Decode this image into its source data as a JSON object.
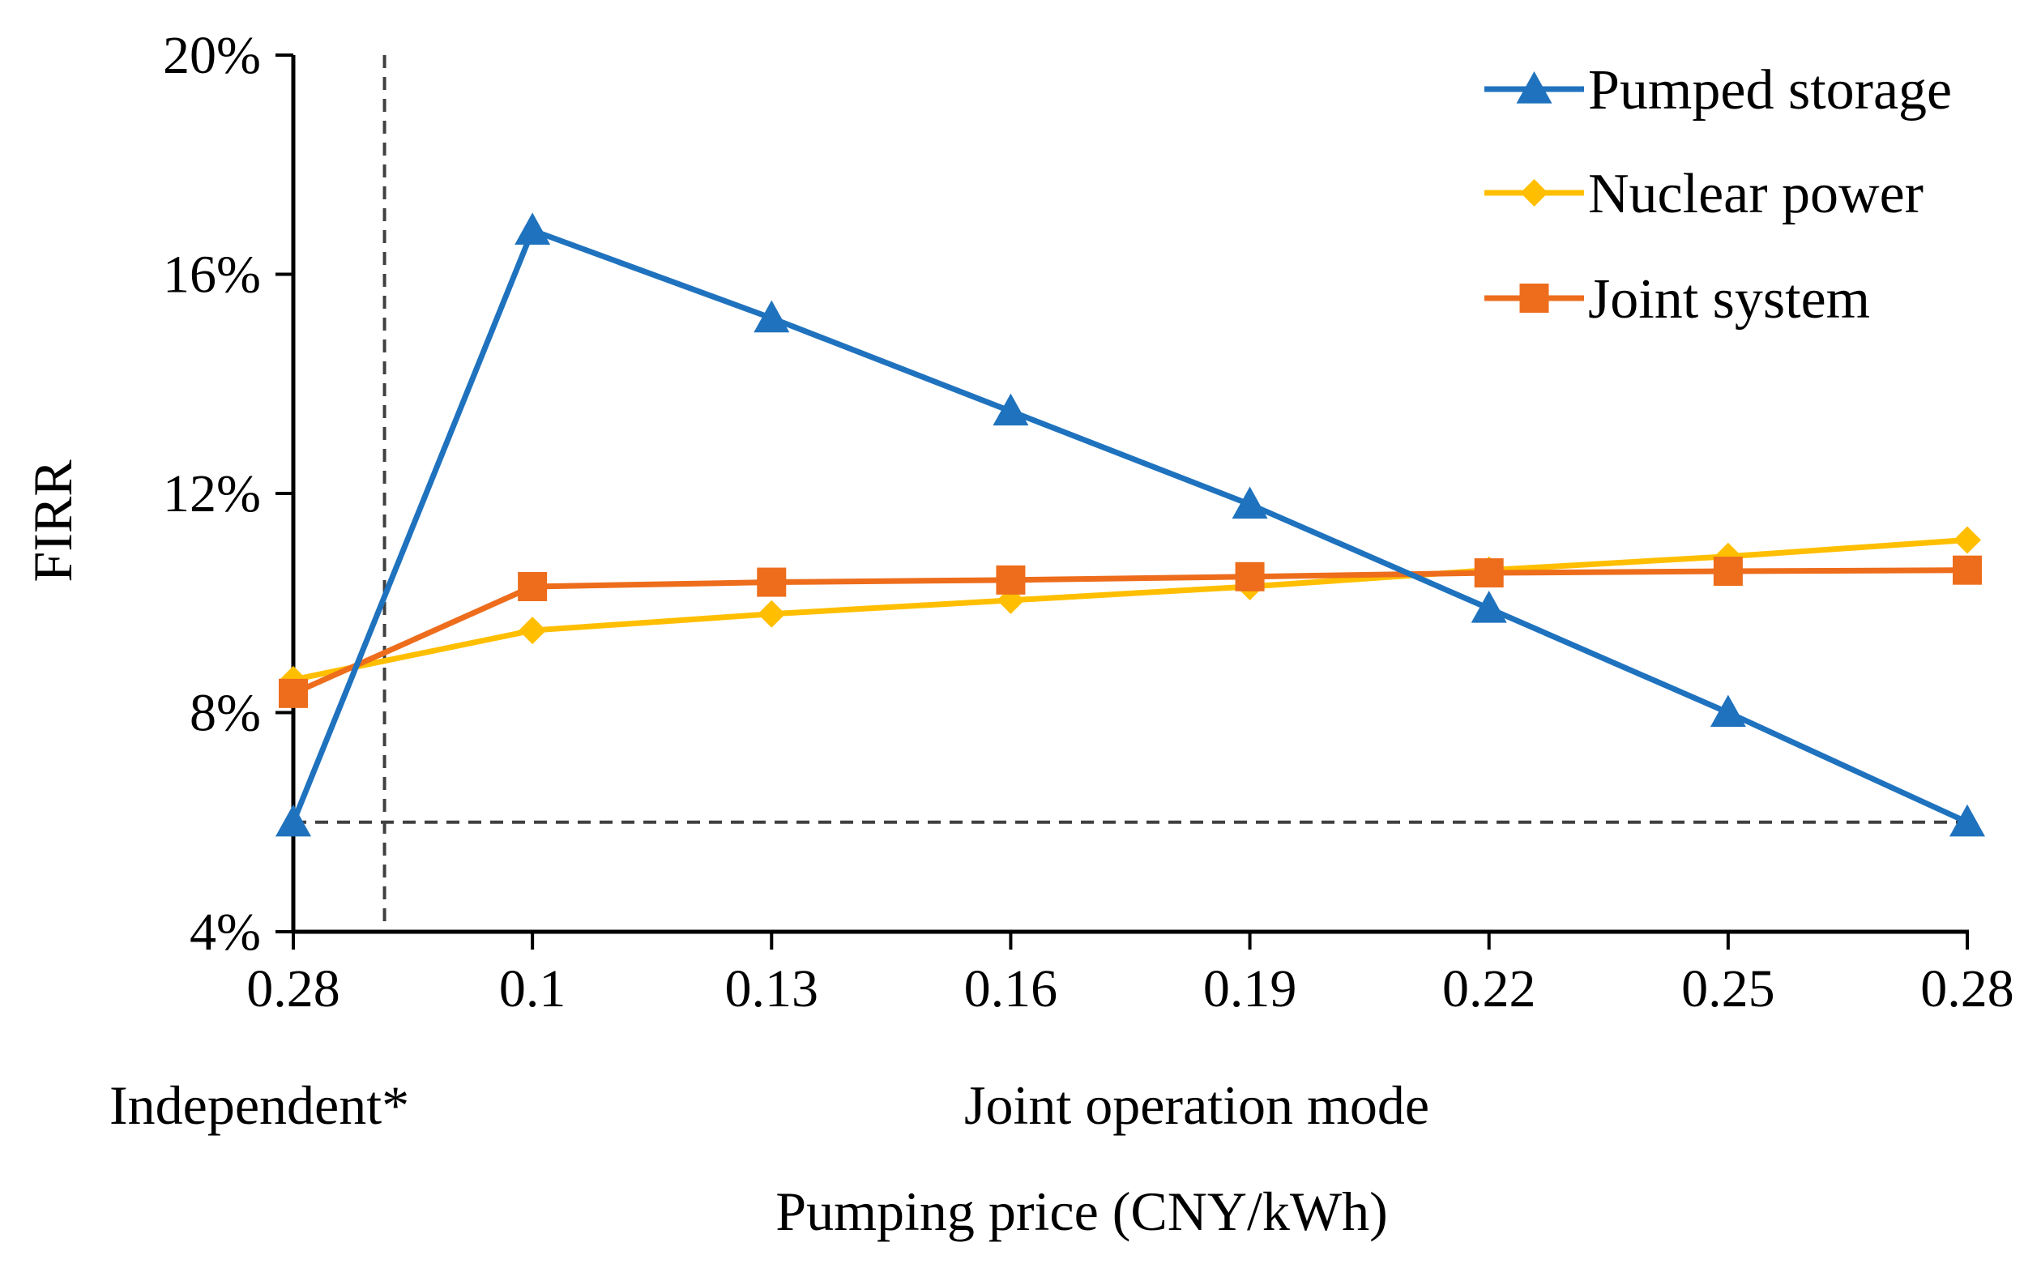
{
  "chart_data": {
    "type": "line",
    "xlabel": "Pumping price (CNY/kWh)",
    "ylabel": "FIRR",
    "categories": [
      "0.28",
      "0.1",
      "0.13",
      "0.16",
      "0.19",
      "0.22",
      "0.25",
      "0.28"
    ],
    "group_labels": {
      "independent": "Independent*",
      "joint": "Joint operation mode"
    },
    "ylim": [
      4,
      20
    ],
    "yticks": [
      4,
      8,
      12,
      16,
      20
    ],
    "ytick_labels": [
      "4%",
      "8%",
      "12%",
      "16%",
      "20%"
    ],
    "y_unit": "%",
    "reference_line_y": 6,
    "separator_between_categories": [
      0,
      1
    ],
    "legend_position": "top-right",
    "grid": false,
    "series": [
      {
        "name": "Pumped storage",
        "color": "#1f72be",
        "marker": "triangle",
        "values": [
          6.0,
          16.8,
          15.2,
          13.5,
          11.8,
          9.9,
          8.0,
          6.0
        ]
      },
      {
        "name": "Nuclear power",
        "color": "#ffbf00",
        "marker": "diamond",
        "values": [
          8.6,
          9.5,
          9.8,
          10.05,
          10.3,
          10.6,
          10.85,
          11.15
        ]
      },
      {
        "name": "Joint system",
        "color": "#ed6d1c",
        "marker": "square",
        "values": [
          8.35,
          10.3,
          10.38,
          10.42,
          10.48,
          10.55,
          10.58,
          10.6
        ]
      }
    ]
  }
}
